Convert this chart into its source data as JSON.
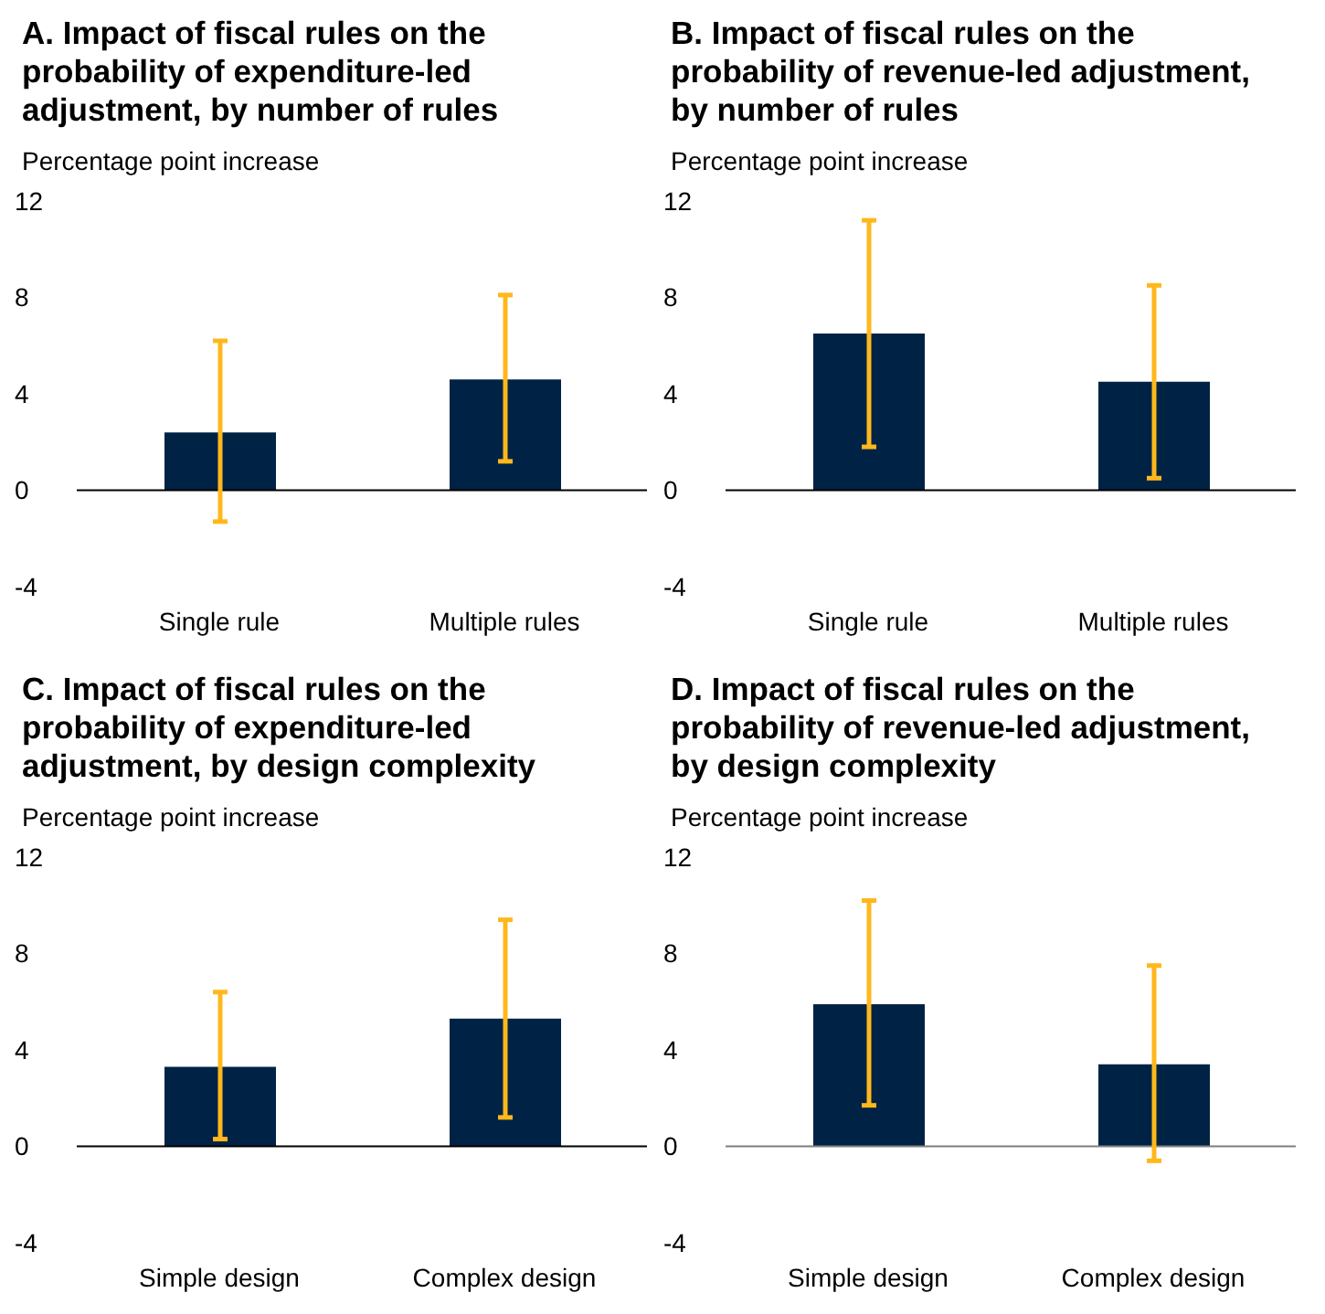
{
  "chart_data": [
    {
      "type": "bar",
      "title": "A. Impact of fiscal rules on the probability of expenditure-led adjustment, by number of rules",
      "ylabel": "Percentage point increase",
      "categories": [
        "Single rule",
        "Multiple rules"
      ],
      "values": [
        2.4,
        4.6
      ],
      "errors": [
        [
          -1.3,
          6.2
        ],
        [
          1.2,
          8.1
        ]
      ],
      "color": "#002345",
      "ylim": [
        -4,
        12
      ],
      "yticks": [
        -4,
        0,
        4,
        8,
        12
      ],
      "ref_lines": [
        {
          "axis": "y",
          "value": 0,
          "color": "#000000"
        }
      ]
    },
    {
      "type": "bar",
      "title": "B. Impact of fiscal rules on the probability of revenue-led adjustment, by number of rules",
      "ylabel": "Percentage point increase",
      "categories": [
        "Single rule",
        "Multiple rules"
      ],
      "values": [
        6.5,
        4.5
      ],
      "errors": [
        [
          1.8,
          11.2
        ],
        [
          0.5,
          8.5
        ]
      ],
      "color": "#002345",
      "ylim": [
        -4,
        12
      ],
      "yticks": [
        -4,
        0,
        4,
        8,
        12
      ],
      "ref_lines": [
        {
          "axis": "y",
          "value": 0,
          "color": "#000000"
        }
      ]
    },
    {
      "type": "bar",
      "title": "C. Impact of fiscal rules on the probability of expenditure-led adjustment, by design complexity",
      "ylabel": "Percentage point increase",
      "categories": [
        "Simple design",
        "Complex design"
      ],
      "values": [
        3.3,
        5.3
      ],
      "errors": [
        [
          0.3,
          6.4
        ],
        [
          1.2,
          9.4
        ]
      ],
      "color": "#002345",
      "ylim": [
        -4,
        12
      ],
      "yticks": [
        -4,
        0,
        4,
        8,
        12
      ],
      "ref_lines": [
        {
          "axis": "y",
          "value": 0,
          "color": "#000000"
        }
      ]
    },
    {
      "type": "bar",
      "title": "D. Impact of fiscal rules on the probability of revenue-led adjustment, by design complexity",
      "ylabel": "Percentage point increase",
      "categories": [
        "Simple design",
        "Complex design"
      ],
      "values": [
        5.9,
        3.4
      ],
      "errors": [
        [
          1.7,
          10.2
        ],
        [
          -0.6,
          7.5
        ]
      ],
      "color": "#002345",
      "ylim": [
        -4,
        12
      ],
      "yticks": [
        -4,
        0,
        4,
        8,
        12
      ],
      "ref_lines": [
        {
          "axis": "y",
          "value": 0,
          "color": "#7f7f7f"
        }
      ]
    }
  ]
}
